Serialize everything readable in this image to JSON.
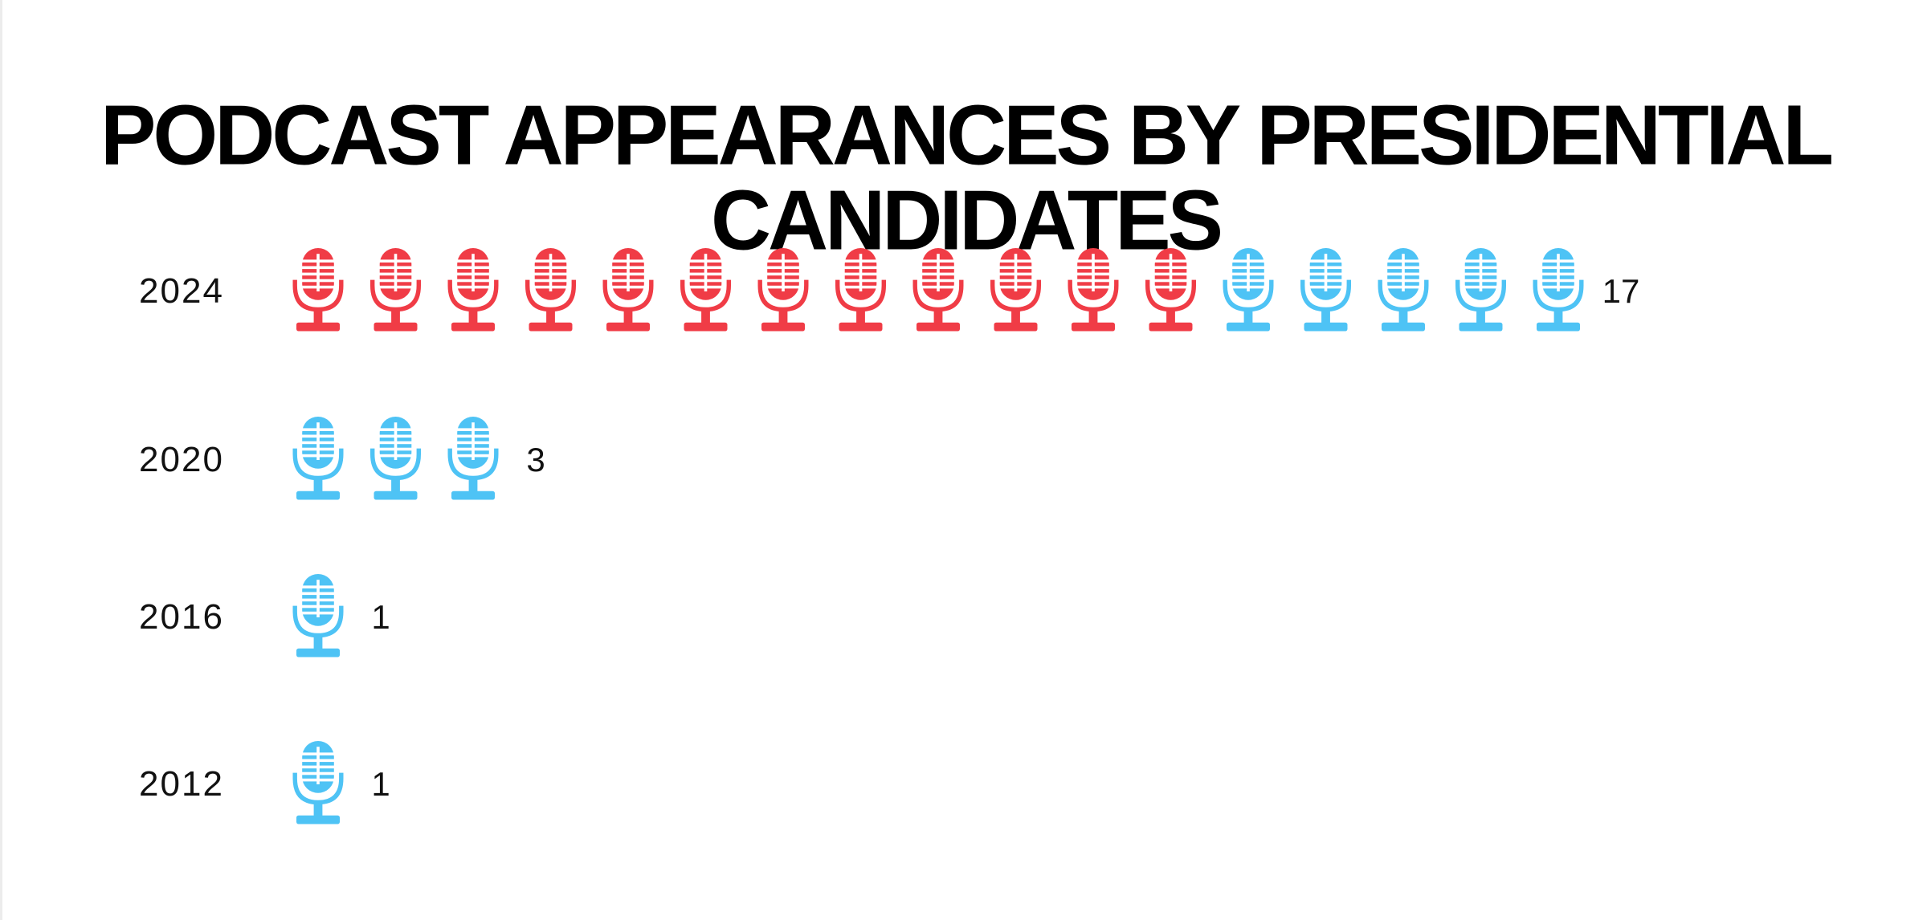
{
  "chart_data": {
    "type": "pictogram",
    "title": "PODCAST APPEARANCES BY PRESIDENTIAL CANDIDATES",
    "icon": "microphone-icon",
    "categories": [
      "2024",
      "2020",
      "2016",
      "2012"
    ],
    "values": [
      17,
      3,
      1,
      1
    ],
    "segments": [
      {
        "year": "2024",
        "red": 12,
        "blue": 5
      },
      {
        "year": "2020",
        "red": 0,
        "blue": 3
      },
      {
        "year": "2016",
        "red": 0,
        "blue": 1
      },
      {
        "year": "2012",
        "red": 0,
        "blue": 1
      }
    ],
    "colors": {
      "red": "#f03c46",
      "blue": "#4ec3f5"
    },
    "xlabel": "",
    "ylabel": ""
  }
}
